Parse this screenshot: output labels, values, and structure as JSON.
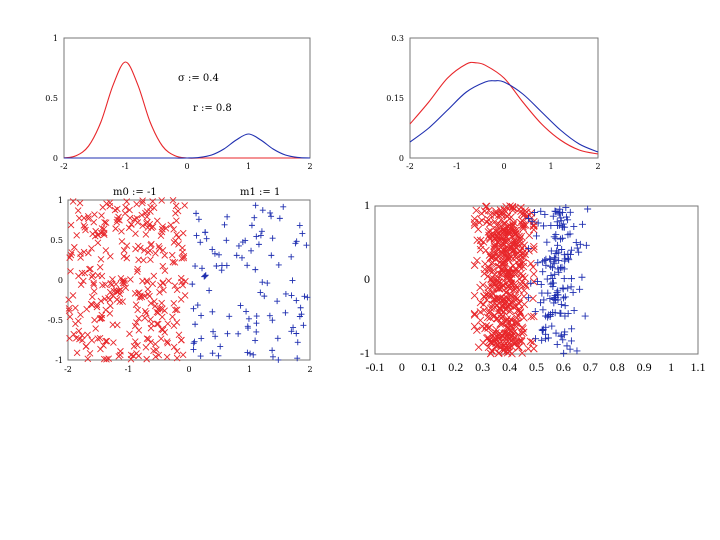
{
  "chart_data": [
    {
      "type": "line",
      "xlim": [
        -2,
        2
      ],
      "ylim": [
        0,
        1
      ],
      "x_ticks": [
        "-2",
        "-1",
        "0",
        "1",
        "2"
      ],
      "y_ticks": [
        "0",
        "0.5",
        "1"
      ],
      "annotations": [
        "σ := 0.4",
        "r := 0.8"
      ],
      "series": [
        {
          "color": "#e8262a",
          "x": [
            -2.0,
            -1.8,
            -1.6,
            -1.4,
            -1.2,
            -1.0,
            -0.8,
            -0.6,
            -0.4,
            -0.2,
            0.0,
            0.2,
            0.4,
            0.6,
            0.8,
            1.0,
            1.2,
            1.4,
            1.6,
            1.8,
            2.0
          ],
          "y": [
            0.0,
            0.02,
            0.1,
            0.3,
            0.61,
            0.8,
            0.61,
            0.3,
            0.1,
            0.02,
            0.0,
            0.0,
            0.0,
            0.0,
            0.0,
            0.0,
            0.0,
            0.0,
            0.0,
            0.0,
            0.0
          ]
        },
        {
          "color": "#1f2fb0",
          "x": [
            -2.0,
            -1.8,
            -1.6,
            -1.4,
            -1.2,
            -1.0,
            -0.8,
            -0.6,
            -0.4,
            -0.2,
            0.0,
            0.2,
            0.4,
            0.6,
            0.8,
            1.0,
            1.2,
            1.4,
            1.6,
            1.8,
            2.0
          ],
          "y": [
            0.0,
            0.0,
            0.0,
            0.0,
            0.0,
            0.0,
            0.0,
            0.0,
            0.0,
            0.0,
            0.0,
            0.005,
            0.025,
            0.075,
            0.15,
            0.2,
            0.15,
            0.075,
            0.025,
            0.005,
            0.0
          ]
        }
      ]
    },
    {
      "type": "line",
      "xlim": [
        -2,
        2
      ],
      "ylim": [
        0,
        0.3
      ],
      "x_ticks": [
        "-2",
        "-1",
        "0",
        "1",
        "2"
      ],
      "y_ticks": [
        "0",
        "0.15",
        "0.3"
      ],
      "series": [
        {
          "color": "#e8262a",
          "x": [
            -2.0,
            -1.6,
            -1.2,
            -0.8,
            -0.6,
            -0.4,
            0.0,
            0.4,
            0.8,
            1.2,
            1.6,
            2.0
          ],
          "y": [
            0.085,
            0.14,
            0.2,
            0.235,
            0.238,
            0.232,
            0.2,
            0.14,
            0.085,
            0.045,
            0.02,
            0.01
          ]
        },
        {
          "color": "#1f2fb0",
          "x": [
            -2.0,
            -1.6,
            -1.2,
            -0.8,
            -0.4,
            -0.2,
            0.0,
            0.4,
            0.8,
            1.2,
            1.6,
            2.0
          ],
          "y": [
            0.04,
            0.075,
            0.12,
            0.165,
            0.19,
            0.193,
            0.19,
            0.16,
            0.115,
            0.07,
            0.035,
            0.015
          ]
        }
      ]
    },
    {
      "type": "scatter",
      "xlim": [
        -2,
        2
      ],
      "ylim": [
        -1,
        1
      ],
      "x_ticks": [
        "-2",
        "-1",
        "0",
        "1",
        "2"
      ],
      "y_ticks": [
        "-1",
        "-0.5",
        "0",
        "0.5",
        "1"
      ],
      "annotations": [
        "m0 := -1",
        "m1 := 1"
      ],
      "series": [
        {
          "color": "#e8262a",
          "marker": "x",
          "x_range": [
            -2.0,
            -0.05
          ],
          "count": 330
        },
        {
          "color": "#1f2fb0",
          "marker": "+",
          "x_range": [
            0.05,
            2.0
          ],
          "count": 110
        }
      ]
    },
    {
      "type": "scatter",
      "xlim": [
        -0.1,
        1.1
      ],
      "ylim": [
        -1,
        1
      ],
      "x_ticks": [
        "-0.1",
        "0",
        "0.1",
        "0.2",
        "0.3",
        "0.4",
        "0.5",
        "0.6",
        "0.7",
        "0.8",
        "0.9",
        "1",
        "1.1"
      ],
      "y_ticks": [
        "-1",
        "0",
        "1"
      ],
      "series": [
        {
          "color": "#e8262a",
          "marker": "x",
          "x_range": [
            0.27,
            0.49
          ],
          "count": 520
        },
        {
          "color": "#1f2fb0",
          "marker": "+",
          "x_range": [
            0.47,
            0.69
          ],
          "count": 160
        }
      ]
    }
  ]
}
